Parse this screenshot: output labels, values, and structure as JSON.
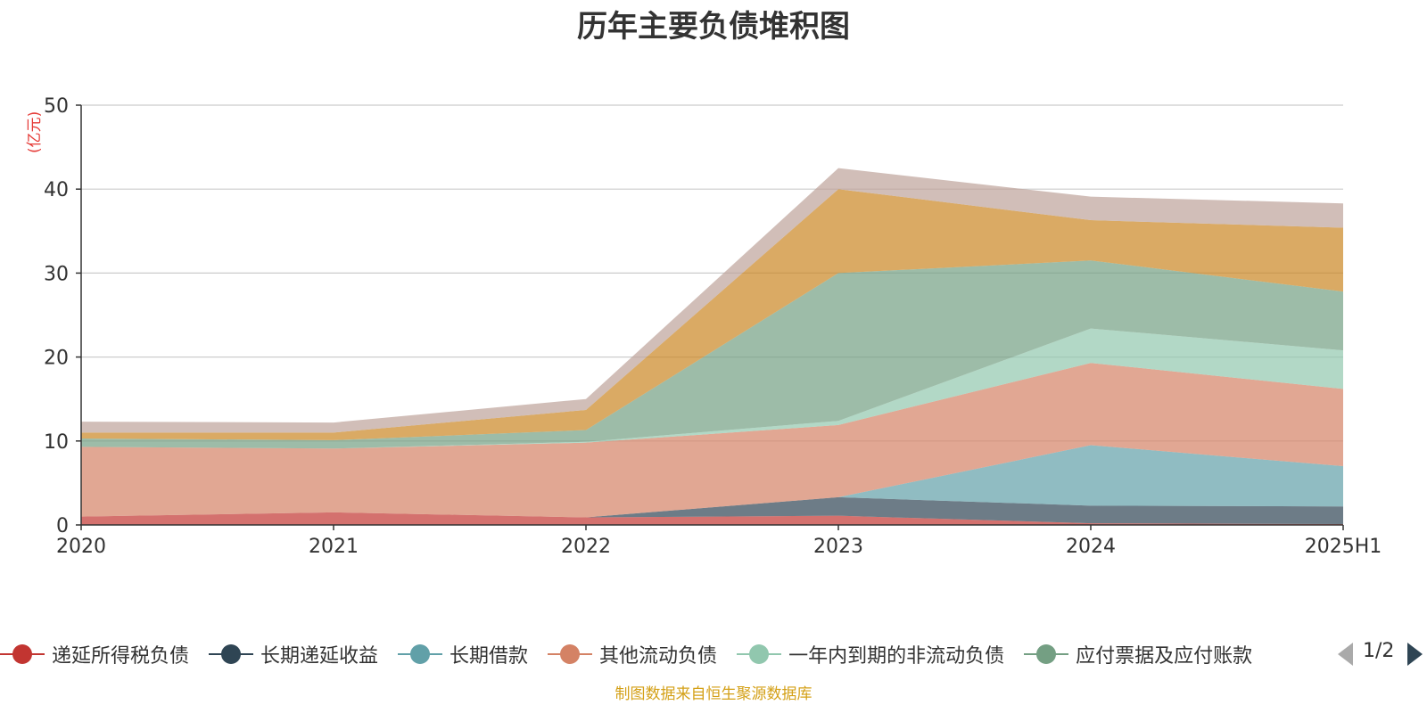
{
  "chart_data": {
    "type": "area",
    "stacked": true,
    "title": "历年主要负债堆积图",
    "ylabel": "(亿元)",
    "ylim": [
      0,
      50
    ],
    "yticks": [
      0,
      10,
      20,
      30,
      40,
      50
    ],
    "grid": true,
    "categories": [
      "2020",
      "2021",
      "2022",
      "2023",
      "2024",
      "2025H1"
    ],
    "series": [
      {
        "name": "递延所得税负债",
        "color": "#c23531",
        "values": [
          1.0,
          1.5,
          0.9,
          1.1,
          0.2,
          0.1
        ]
      },
      {
        "name": "长期递延收益",
        "color": "#2f4554",
        "values": [
          0.0,
          0.0,
          0.0,
          2.2,
          2.1,
          2.1
        ]
      },
      {
        "name": "长期借款",
        "color": "#61a0a8",
        "values": [
          0.0,
          0.0,
          0.0,
          0.0,
          7.2,
          4.8
        ]
      },
      {
        "name": "其他流动负债",
        "color": "#d48265",
        "values": [
          8.3,
          7.6,
          8.9,
          8.6,
          9.8,
          9.2
        ]
      },
      {
        "name": "一年内到期的非流动负债",
        "color": "#91c7ae",
        "values": [
          0.0,
          0.0,
          0.1,
          0.5,
          4.1,
          4.6
        ]
      },
      {
        "name": "应付票据及应付账款",
        "color": "#749f83",
        "values": [
          1.0,
          1.0,
          1.4,
          17.6,
          8.1,
          7.0
        ]
      },
      {
        "name": "",
        "color": "#ca8622",
        "values": [
          0.7,
          0.9,
          2.4,
          10.0,
          4.8,
          7.6
        ]
      },
      {
        "name": "",
        "color": "#bda29a",
        "values": [
          1.3,
          1.2,
          1.3,
          2.5,
          2.8,
          2.9
        ]
      }
    ]
  },
  "legend": {
    "items": [
      "递延所得税负债",
      "长期递延收益",
      "长期借款",
      "其他流动负债",
      "一年内到期的非流动负债",
      "应付票据及应付账款"
    ],
    "colors": [
      "#c23531",
      "#2f4554",
      "#61a0a8",
      "#d48265",
      "#91c7ae",
      "#749f83"
    ],
    "page": "1/2"
  },
  "source": "制图数据来自恒生聚源数据库"
}
